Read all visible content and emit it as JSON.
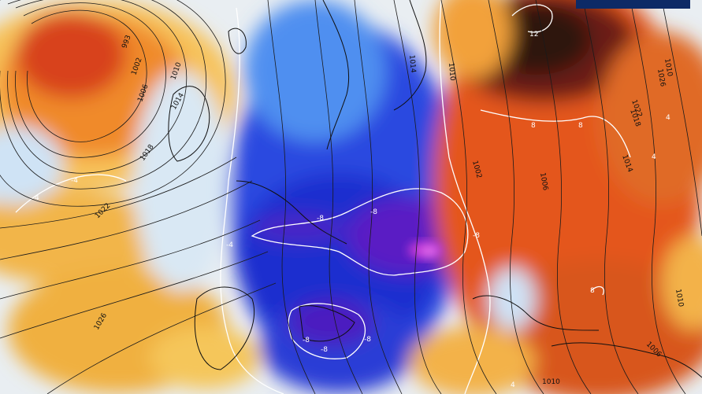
{
  "map": {
    "isobar_labels": [
      "993",
      "1002",
      "1006",
      "1010",
      "1014",
      "1018",
      "1022",
      "1026",
      "1010",
      "1014",
      "1002",
      "1006",
      "1010",
      "1014",
      "1018",
      "1022",
      "1026",
      "1006",
      "1010",
      "1010"
    ],
    "isotherm_labels": [
      "-8",
      "-8",
      "-8",
      "-8",
      "-8",
      "-8",
      "-4",
      "-4",
      "4",
      "4",
      "4",
      "4",
      "8",
      "8",
      "8",
      "12"
    ],
    "colors": {
      "very_cold": "#6a0dad",
      "cold": "#1d2fd0",
      "cool": "#5aa0ee",
      "neutral": "#dfe9f3",
      "mild": "#f2b03a",
      "warm": "#e3541c",
      "hot": "#8b1a10",
      "very_hot": "#3a1410"
    },
    "legend_badge_color": "#0d2a66"
  }
}
